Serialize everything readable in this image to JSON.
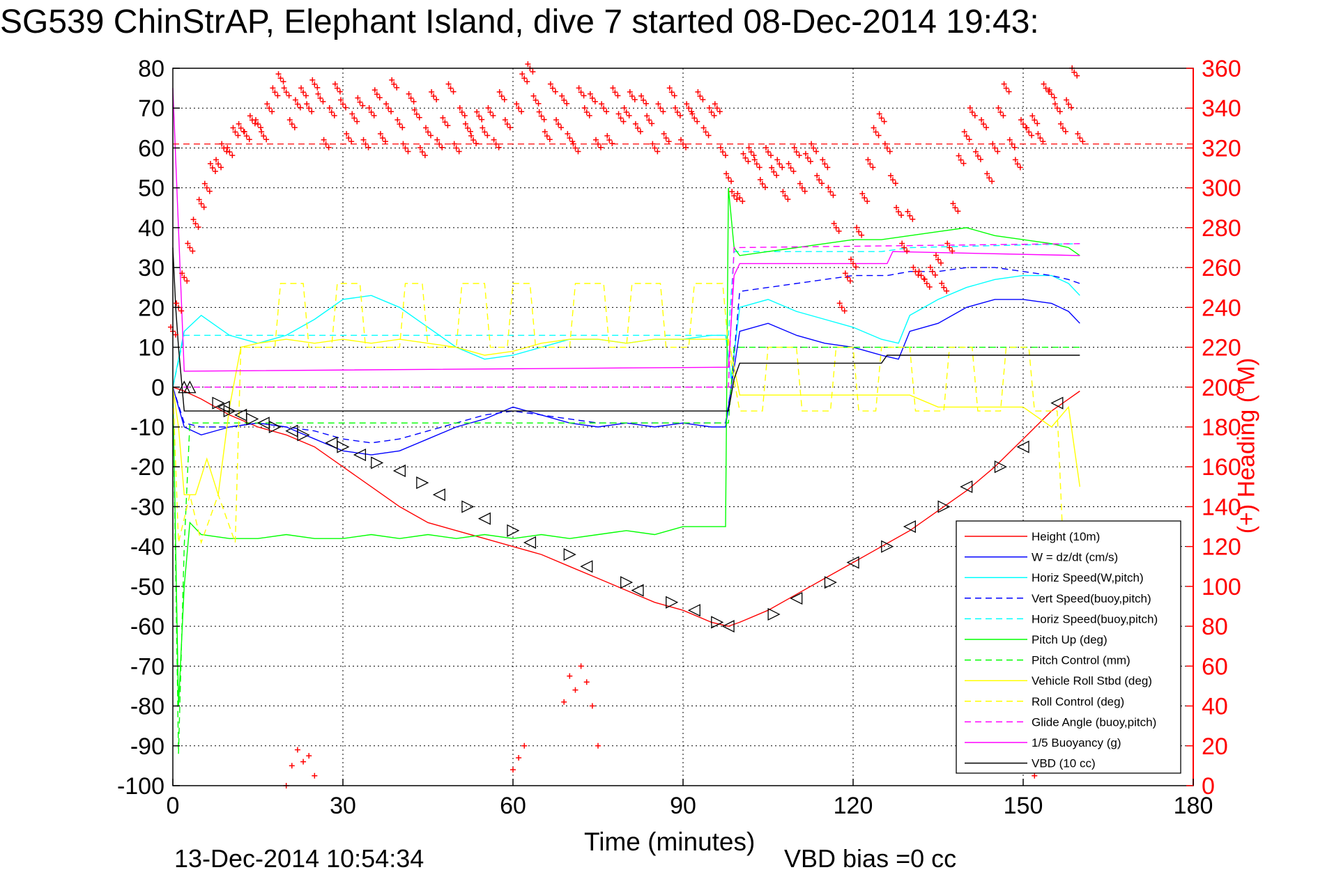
{
  "title": "SG539 ChinStrAP, Elephant Island, dive 7 started 08-Dec-2014 19:43:",
  "footer": {
    "timestamp": "13-Dec-2014 10:54:34",
    "vbd_bias": "VBD bias =0 cc"
  },
  "chart_data": {
    "type": "line",
    "title": "SG539 ChinStrAP, Elephant Island, dive 7 started 08-Dec-2014 19:43:",
    "xlabel": "Time (minutes)",
    "ylabel": "",
    "ylabel_right": "(+) Heading (°M)",
    "xlim": [
      0,
      180
    ],
    "ylim": [
      -100,
      80
    ],
    "ylim_right": [
      0,
      360
    ],
    "xticks": [
      0,
      30,
      60,
      90,
      120,
      150,
      180
    ],
    "yticks": [
      80,
      70,
      60,
      50,
      40,
      30,
      20,
      10,
      0,
      -10,
      -20,
      -30,
      -40,
      -50,
      -60,
      -70,
      -80,
      -90,
      -100
    ],
    "yticks_right": [
      360,
      340,
      320,
      300,
      280,
      260,
      240,
      220,
      200,
      180,
      160,
      140,
      120,
      100,
      80,
      60,
      40,
      20,
      0
    ],
    "grid": true,
    "legend_position": "bottom-right",
    "heading_reference": 322,
    "series": [
      {
        "name": "Height (10m)",
        "color": "#ff0000",
        "style": "solid",
        "x": [
          0,
          2,
          5,
          10,
          15,
          20,
          25,
          30,
          35,
          40,
          45,
          50,
          55,
          60,
          65,
          70,
          75,
          80,
          85,
          90,
          95,
          98,
          100,
          105,
          110,
          115,
          120,
          125,
          130,
          135,
          140,
          145,
          150,
          155,
          158,
          160
        ],
        "y": [
          0,
          -1,
          -3,
          -7,
          -10,
          -12,
          -15,
          -20,
          -25,
          -30,
          -34,
          -36,
          -38,
          -40,
          -42,
          -45,
          -48,
          -51,
          -54,
          -56,
          -59,
          -60,
          -59,
          -56,
          -52,
          -48,
          -44,
          -40,
          -36,
          -31,
          -26,
          -20,
          -13,
          -6,
          -3,
          -1
        ]
      },
      {
        "name": "W = dz/dt (cm/s)",
        "color": "#0000ff",
        "style": "solid",
        "x": [
          0,
          2,
          5,
          10,
          15,
          20,
          25,
          30,
          35,
          40,
          45,
          50,
          55,
          60,
          65,
          70,
          75,
          80,
          85,
          90,
          95,
          97.5,
          98.5,
          100,
          105,
          110,
          115,
          120,
          125,
          128,
          130,
          135,
          140,
          145,
          150,
          155,
          158,
          160
        ],
        "y": [
          0,
          -10,
          -12,
          -10,
          -9,
          -10,
          -13,
          -16,
          -17,
          -16,
          -13,
          -10,
          -8,
          -5,
          -7,
          -9,
          -10,
          -9,
          -10,
          -9,
          -10,
          -10,
          0,
          14,
          16,
          13,
          11,
          10,
          8,
          7,
          14,
          16,
          20,
          22,
          22,
          21,
          19,
          16
        ]
      },
      {
        "name": "Horiz Speed(W,pitch)",
        "color": "#00ffff",
        "style": "solid",
        "x": [
          0,
          2,
          5,
          10,
          15,
          20,
          25,
          30,
          35,
          40,
          45,
          50,
          55,
          60,
          65,
          70,
          75,
          80,
          85,
          90,
          95,
          97.5,
          98.5,
          100,
          105,
          110,
          115,
          120,
          125,
          128,
          130,
          135,
          140,
          145,
          150,
          155,
          158,
          160
        ],
        "y": [
          0,
          14,
          18,
          13,
          11,
          13,
          17,
          22,
          23,
          20,
          15,
          10,
          7,
          8,
          10,
          12,
          12,
          11,
          12,
          12,
          13,
          13,
          2,
          20,
          22,
          19,
          17,
          15,
          12,
          11,
          18,
          22,
          25,
          27,
          28,
          28,
          26,
          23
        ]
      },
      {
        "name": "Vert Speed(buoy,pitch)",
        "color": "#0000ff",
        "style": "dashed",
        "x": [
          0,
          2,
          5,
          10,
          15,
          20,
          25,
          30,
          35,
          40,
          45,
          50,
          55,
          60,
          65,
          70,
          75,
          80,
          85,
          90,
          95,
          97.5,
          98.5,
          100,
          105,
          110,
          115,
          120,
          125,
          126,
          130,
          135,
          140,
          145,
          150,
          155,
          158,
          160
        ],
        "y": [
          0,
          -9,
          -10,
          -10,
          -9,
          -10,
          -11,
          -13,
          -14,
          -13,
          -11,
          -9,
          -7,
          -6,
          -7,
          -8,
          -9,
          -9,
          -9,
          -9,
          -9,
          -9,
          0,
          24,
          25,
          26,
          27,
          28,
          28,
          28,
          29,
          29,
          30,
          30,
          29,
          28,
          27,
          26
        ]
      },
      {
        "name": "Horiz Speed(buoy,pitch)",
        "color": "#00ffff",
        "style": "dashed",
        "x": [
          0,
          2,
          98,
          99,
          125,
          130,
          160
        ],
        "y": [
          0,
          13,
          13,
          34,
          34,
          35,
          36
        ]
      },
      {
        "name": "Pitch Up (deg)",
        "color": "#00ff00",
        "style": "solid",
        "x": [
          0,
          1,
          2,
          3,
          5,
          10,
          15,
          20,
          25,
          30,
          35,
          40,
          45,
          50,
          55,
          60,
          65,
          70,
          75,
          80,
          85,
          90,
          95,
          97.5,
          98,
          99,
          100,
          105,
          110,
          115,
          120,
          125,
          130,
          135,
          140,
          145,
          150,
          155,
          158,
          160
        ],
        "y": [
          0,
          -80,
          -50,
          -34,
          -37,
          -38,
          -38,
          -37,
          -38,
          -38,
          -37,
          -38,
          -37,
          -38,
          -37,
          -38,
          -37,
          -38,
          -37,
          -36,
          -37,
          -35,
          -35,
          -35,
          50,
          35,
          33,
          34,
          35,
          36,
          37,
          37,
          38,
          39,
          40,
          38,
          37,
          36,
          35,
          33
        ]
      },
      {
        "name": "Pitch Control (mm)",
        "color": "#00ff00",
        "style": "dashed",
        "x": [
          0,
          1,
          2,
          3,
          98,
          99,
          160
        ],
        "y": [
          0,
          -92,
          -40,
          -9,
          -9,
          10,
          10
        ]
      },
      {
        "name": "Vehicle Roll Stbd (deg)",
        "color": "#ffff00",
        "style": "solid",
        "x": [
          0,
          1,
          2,
          4,
          6,
          8,
          10,
          12,
          15,
          20,
          25,
          30,
          35,
          40,
          45,
          50,
          55,
          60,
          65,
          70,
          75,
          80,
          85,
          90,
          95,
          98,
          100,
          105,
          110,
          115,
          120,
          125,
          130,
          135,
          140,
          145,
          150,
          155,
          158,
          160
        ],
        "y": [
          0,
          -10,
          -27,
          -27,
          -18,
          -27,
          -5,
          10,
          11,
          12,
          11,
          12,
          11,
          12,
          11,
          10,
          8,
          9,
          11,
          12,
          12,
          11,
          12,
          12,
          12,
          12,
          -2,
          -2,
          -2,
          -2,
          -2,
          -2,
          -2,
          -5,
          -5,
          -5,
          -5,
          -10,
          -5,
          -25
        ]
      },
      {
        "name": "Roll Control (deg)",
        "color": "#ffff00",
        "style": "dashed",
        "x": [
          0,
          1,
          3,
          5,
          8,
          11,
          12,
          18,
          19,
          23,
          24,
          28,
          29,
          33,
          34,
          40,
          41,
          44,
          45,
          50,
          51,
          55,
          56,
          59,
          60,
          63,
          64,
          70,
          71,
          76,
          77,
          80,
          81,
          86,
          87,
          91,
          92,
          97,
          98,
          100,
          104,
          105,
          110,
          111,
          116,
          117,
          120,
          121,
          124,
          125,
          130,
          131,
          136,
          137,
          141,
          142,
          146,
          147,
          151,
          152,
          156,
          157,
          160
        ],
        "y": [
          0,
          -39,
          -27,
          -39,
          -27,
          -39,
          10,
          10,
          26,
          26,
          10,
          10,
          26,
          26,
          10,
          10,
          26,
          26,
          10,
          10,
          26,
          26,
          10,
          10,
          26,
          26,
          10,
          10,
          26,
          26,
          10,
          10,
          26,
          26,
          10,
          10,
          26,
          26,
          10,
          -6,
          -6,
          10,
          10,
          -6,
          -6,
          10,
          10,
          -6,
          -6,
          10,
          10,
          -6,
          -6,
          10,
          10,
          -6,
          -6,
          10,
          10,
          -6,
          -6,
          -38,
          -38
        ]
      },
      {
        "name": "Glide Angle (buoy,pitch)",
        "color": "#ff00ff",
        "style": "dashed",
        "x": [
          0,
          2,
          98,
          99,
          160
        ],
        "y": [
          0,
          0,
          0,
          35,
          36
        ]
      },
      {
        "name": "1/5 Buoyancy (g)",
        "color": "#ff00ff",
        "style": "solid",
        "x": [
          0,
          2,
          98,
          99,
          100,
          126,
          127,
          160
        ],
        "y": [
          75,
          4,
          5,
          28,
          31,
          31,
          34,
          33
        ]
      },
      {
        "name": "VBD (10 cc)",
        "color": "#000000",
        "style": "solid",
        "x": [
          0,
          0.5,
          1,
          2,
          3,
          98,
          99,
          100,
          125,
          126,
          160
        ],
        "y": [
          35,
          20,
          10,
          -6,
          -6,
          -6,
          2,
          6,
          6,
          8,
          8
        ]
      }
    ],
    "heading": {
      "name": "(+) Heading",
      "color": "#ff0000",
      "marker": "+",
      "axis": "right",
      "x": [
        0,
        1,
        2,
        3,
        4,
        5,
        6,
        7,
        8,
        9,
        10,
        11,
        12,
        13,
        14,
        15,
        16,
        17,
        18,
        19,
        20,
        21,
        22,
        23,
        24,
        25,
        26,
        27,
        28,
        29,
        30,
        31,
        32,
        33,
        34,
        35,
        36,
        37,
        38,
        39,
        40,
        41,
        42,
        43,
        44,
        45,
        46,
        47,
        48,
        49,
        50,
        51,
        52,
        53,
        54,
        55,
        56,
        57,
        58,
        59,
        61,
        62,
        63,
        64,
        65,
        66,
        67,
        68,
        69,
        70,
        71,
        72,
        73,
        74,
        75,
        76,
        77,
        78,
        79,
        80,
        81,
        82,
        83,
        84,
        85,
        86,
        87,
        88,
        89,
        90,
        91,
        92,
        93,
        94,
        95,
        96,
        97,
        98,
        99,
        100,
        101,
        102,
        103,
        104,
        105,
        106,
        107,
        108,
        109,
        110,
        111,
        112,
        113,
        114,
        115,
        116,
        117,
        118,
        119,
        120,
        121,
        122,
        123,
        124,
        125,
        126,
        127,
        128,
        129,
        130,
        131,
        132,
        133,
        134,
        135,
        136,
        137,
        138,
        139,
        140,
        141,
        142,
        143,
        144,
        145,
        146,
        147,
        148,
        149,
        150,
        151,
        152,
        153,
        154,
        155,
        156,
        157,
        158,
        159,
        160
      ],
      "y": [
        228,
        240,
        255,
        270,
        282,
        292,
        300,
        310,
        312,
        320,
        318,
        328,
        330,
        326,
        334,
        332,
        326,
        340,
        348,
        355,
        348,
        332,
        342,
        348,
        340,
        352,
        345,
        322,
        338,
        350,
        342,
        325,
        335,
        343,
        322,
        338,
        347,
        325,
        340,
        352,
        332,
        320,
        345,
        337,
        318,
        328,
        346,
        322,
        333,
        350,
        320,
        338,
        330,
        324,
        336,
        328,
        338,
        322,
        346,
        332,
        340,
        355,
        360,
        344,
        336,
        326,
        350,
        332,
        344,
        325,
        320,
        348,
        338,
        345,
        322,
        340,
        324,
        348,
        335,
        338,
        346,
        330,
        344,
        334,
        320,
        340,
        325,
        348,
        338,
        322,
        340,
        335,
        346,
        328,
        338,
        340,
        318,
        305,
        296,
        295,
        315,
        318,
        312,
        302,
        318,
        308,
        312,
        296,
        310,
        318,
        300,
        315,
        320,
        304,
        312,
        298,
        280,
        240,
        255,
        262,
        278,
        295,
        312,
        328,
        335,
        320,
        304,
        288,
        270,
        286,
        258,
        256,
        252,
        258,
        264,
        250,
        270,
        290,
        314,
        326,
        338,
        316,
        332,
        305,
        320,
        338,
        350,
        322,
        312,
        332,
        328,
        334,
        325,
        350,
        347,
        340,
        330,
        342,
        358,
        325
      ]
    },
    "heading_wrapped": {
      "color": "#ff0000",
      "marker": "+",
      "axis": "right",
      "x": [
        20,
        21,
        22,
        23,
        24,
        25,
        60,
        61,
        62,
        69,
        70,
        71,
        72,
        73,
        74,
        75,
        152,
        153,
        154
      ],
      "y": [
        0,
        10,
        18,
        12,
        15,
        5,
        8,
        14,
        20,
        42,
        55,
        48,
        60,
        52,
        40,
        20,
        5,
        12,
        8
      ]
    },
    "markers": {
      "description": "",
      "up": {
        "x": [
          2,
          3
        ],
        "y": [
          0,
          0
        ]
      },
      "right": {
        "x": [
          8,
          10,
          14,
          18,
          23,
          30,
          36,
          44,
          52,
          60,
          70,
          80,
          88,
          96,
          106,
          116,
          126,
          136,
          146
        ],
        "y": [
          -4,
          -6,
          -8,
          -10,
          -12,
          -15,
          -19,
          -24,
          -30,
          -36,
          -42,
          -49,
          -54,
          -59,
          -57,
          -49,
          -40,
          -30,
          -20
        ]
      },
      "left": {
        "x": [
          9,
          12,
          16,
          21,
          28,
          33,
          40,
          47,
          55,
          63,
          73,
          82,
          92,
          98,
          110,
          120,
          130,
          140,
          150,
          156
        ],
        "y": [
          -5,
          -7,
          -9,
          -11,
          -14,
          -17,
          -21,
          -27,
          -33,
          -39,
          -45,
          -51,
          -56,
          -60,
          -53,
          -44,
          -35,
          -25,
          -15,
          -4
        ]
      }
    }
  }
}
